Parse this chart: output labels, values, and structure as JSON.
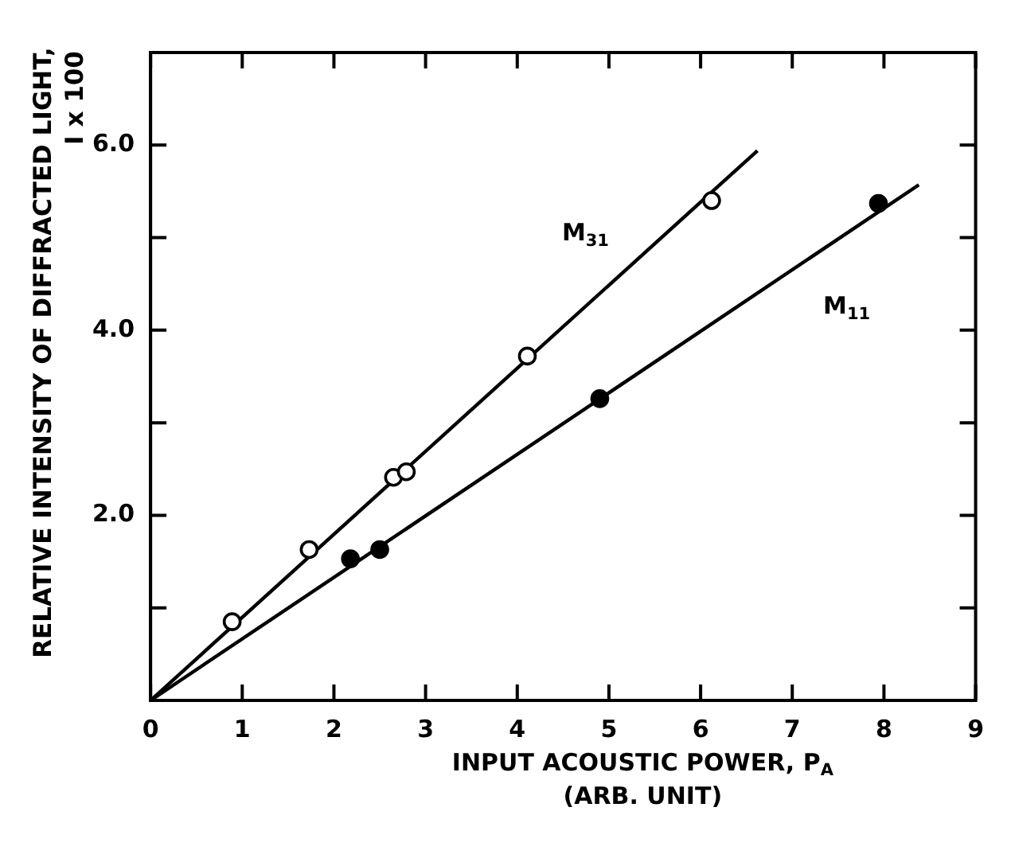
{
  "chart_data": {
    "type": "scatter",
    "xlabel": "INPUT ACOUSTIC POWER, P$_{A}$\n(ARB. UNIT)",
    "ylabel": "RELATIVE INTENSITY OF DIFFRACTED LIGHT,\nI x 100",
    "xlim": [
      0,
      9
    ],
    "ylim": [
      0,
      7
    ],
    "xticks": [
      0,
      1,
      2,
      3,
      4,
      5,
      6,
      7,
      8,
      9
    ],
    "yticks": [
      {
        "value": 1,
        "label": null
      },
      {
        "value": 2,
        "label": "2.0"
      },
      {
        "value": 3,
        "label": null
      },
      {
        "value": 4,
        "label": "4.0"
      },
      {
        "value": 5,
        "label": null
      },
      {
        "value": 6,
        "label": "6.0"
      }
    ],
    "grid": false,
    "legend": false,
    "marker": "circle",
    "series": [
      {
        "type": "scatter",
        "color": "#ffffff",
        "x": [
          0.89,
          1.73,
          2.65,
          2.79,
          4.11,
          6.12
        ],
        "values": [
          0.85,
          1.63,
          2.41,
          2.47,
          3.72,
          5.4
        ]
      },
      {
        "type": "scatter",
        "color": "#000000",
        "x": [
          2.18,
          2.5,
          4.9,
          7.94
        ],
        "values": [
          1.53,
          1.63,
          3.26,
          5.37
        ]
      },
      {
        "type": "line",
        "name": "M$_{31}$",
        "color": "#000000",
        "marker": "none",
        "x": [
          0,
          6.62
        ],
        "values": [
          0,
          5.94
        ]
      },
      {
        "type": "line",
        "name": "M$_{11}$",
        "color": "#000000",
        "marker": "none",
        "x": [
          0,
          8.38
        ],
        "values": [
          0,
          5.57
        ]
      }
    ]
  }
}
